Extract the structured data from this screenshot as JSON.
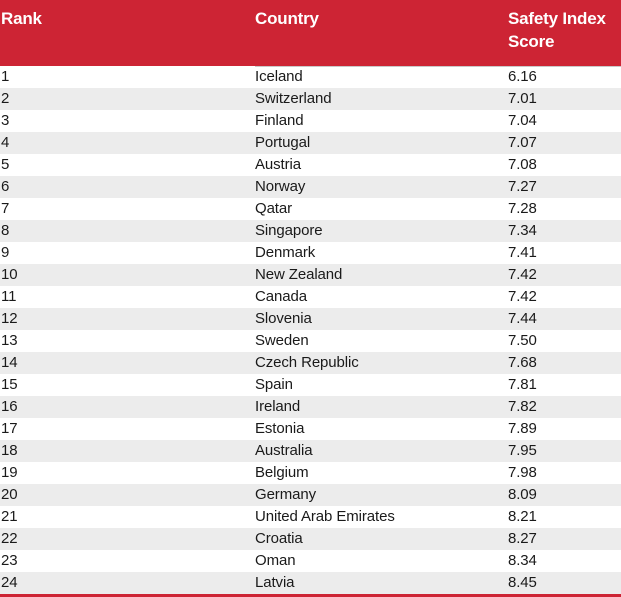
{
  "header": {
    "rank": "Rank",
    "country": "Country",
    "score": "Safety Index Score"
  },
  "colors": {
    "header_background": "#cd2434",
    "header_text": "#ffffff",
    "zebra_stripe": "#ececec",
    "body_text": "#1a1a1a",
    "divider": "#c9c9c9",
    "bottom_bar": "#cd2434"
  },
  "chart_data": {
    "type": "table",
    "columns": [
      "Rank",
      "Country",
      "Safety Index Score"
    ],
    "rows": [
      [
        "1",
        "Iceland",
        "6.16"
      ],
      [
        "2",
        "Switzerland",
        "7.01"
      ],
      [
        "3",
        "Finland",
        "7.04"
      ],
      [
        "4",
        "Portugal",
        "7.07"
      ],
      [
        "5",
        "Austria",
        "7.08"
      ],
      [
        "6",
        "Norway",
        "7.27"
      ],
      [
        "7",
        "Qatar",
        "7.28"
      ],
      [
        "8",
        "Singapore",
        "7.34"
      ],
      [
        "9",
        "Denmark",
        "7.41"
      ],
      [
        "10",
        "New Zealand",
        "7.42"
      ],
      [
        "11",
        "Canada",
        "7.42"
      ],
      [
        "12",
        "Slovenia",
        "7.44"
      ],
      [
        "13",
        "Sweden",
        "7.50"
      ],
      [
        "14",
        "Czech Republic",
        "7.68"
      ],
      [
        "15",
        "Spain",
        "7.81"
      ],
      [
        "16",
        "Ireland",
        "7.82"
      ],
      [
        "17",
        "Estonia",
        "7.89"
      ],
      [
        "18",
        "Australia",
        "7.95"
      ],
      [
        "19",
        "Belgium",
        "7.98"
      ],
      [
        "20",
        "Germany",
        "8.09"
      ],
      [
        "21",
        "United Arab Emirates",
        "8.21"
      ],
      [
        "22",
        "Croatia",
        "8.27"
      ],
      [
        "23",
        "Oman",
        "8.34"
      ],
      [
        "24",
        "Latvia",
        "8.45"
      ]
    ]
  }
}
